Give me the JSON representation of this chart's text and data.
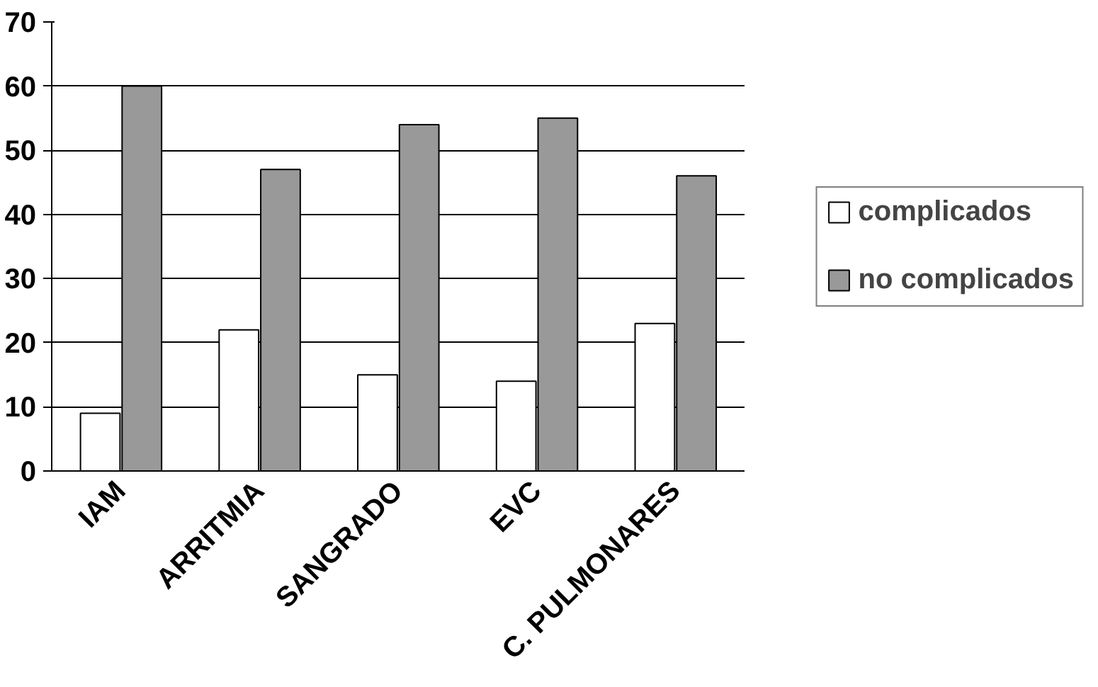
{
  "chart_data": {
    "type": "bar",
    "categories": [
      "IAM",
      "ARRITMIA",
      "SANGRADO",
      "EVC",
      "C. PULMONARES"
    ],
    "series": [
      {
        "name": "complicados",
        "color": "#ffffff",
        "values": [
          9,
          22,
          15,
          14,
          23
        ]
      },
      {
        "name": "no complicados",
        "color": "#999999",
        "values": [
          60,
          47,
          54,
          55,
          46
        ]
      }
    ],
    "ylim": [
      0,
      70
    ],
    "yticks": [
      0,
      10,
      20,
      30,
      40,
      50,
      60,
      70
    ],
    "grid": "y",
    "legend": "right"
  }
}
